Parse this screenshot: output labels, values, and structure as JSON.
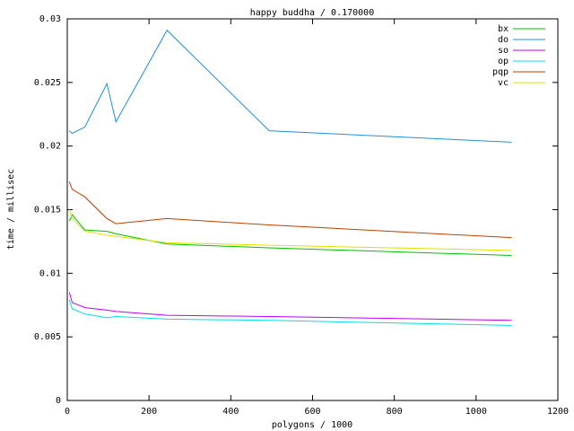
{
  "chart_data": {
    "type": "line",
    "title": "happy buddha / 0.170000",
    "x_label": "polygons / 1000",
    "y_label": "time / millisec",
    "x": [
      5,
      12,
      43,
      97,
      119,
      244,
      494,
      1087
    ],
    "series": [
      {
        "name": "bx",
        "color": "#00c000",
        "values": [
          0.0141,
          0.0146,
          0.0134,
          0.0133,
          0.0131,
          0.0123,
          0.012,
          0.0114
        ]
      },
      {
        "name": "do",
        "color": "#1e90e0",
        "values": [
          0.0212,
          0.021,
          0.0215,
          0.0249,
          0.0219,
          0.0291,
          0.0212,
          0.0203
        ]
      },
      {
        "name": "so",
        "color": "#c000ff",
        "values": [
          0.0085,
          0.0077,
          0.0073,
          0.0071,
          0.007,
          0.0067,
          0.0066,
          0.0063
        ]
      },
      {
        "name": "op",
        "color": "#00e0e0",
        "values": [
          0.0079,
          0.0072,
          0.0068,
          0.0065,
          0.0066,
          0.0064,
          0.0063,
          0.0059
        ]
      },
      {
        "name": "pqp",
        "color": "#c04000",
        "values": [
          0.0172,
          0.0166,
          0.016,
          0.0143,
          0.0139,
          0.0143,
          0.0138,
          0.0128
        ]
      },
      {
        "name": "vc",
        "color": "#e0e000",
        "values": [
          0.015,
          0.0143,
          0.0133,
          0.013,
          0.0129,
          0.0124,
          0.0122,
          0.0118
        ]
      }
    ],
    "xlim": [
      0,
      1200
    ],
    "xticks": [
      0,
      200,
      400,
      600,
      800,
      1000,
      1200
    ],
    "ylim": [
      0,
      0.03
    ],
    "yticks": [
      0,
      0.005,
      0.01,
      0.015,
      0.02,
      0.025,
      0.03
    ],
    "legend": "top-right"
  }
}
